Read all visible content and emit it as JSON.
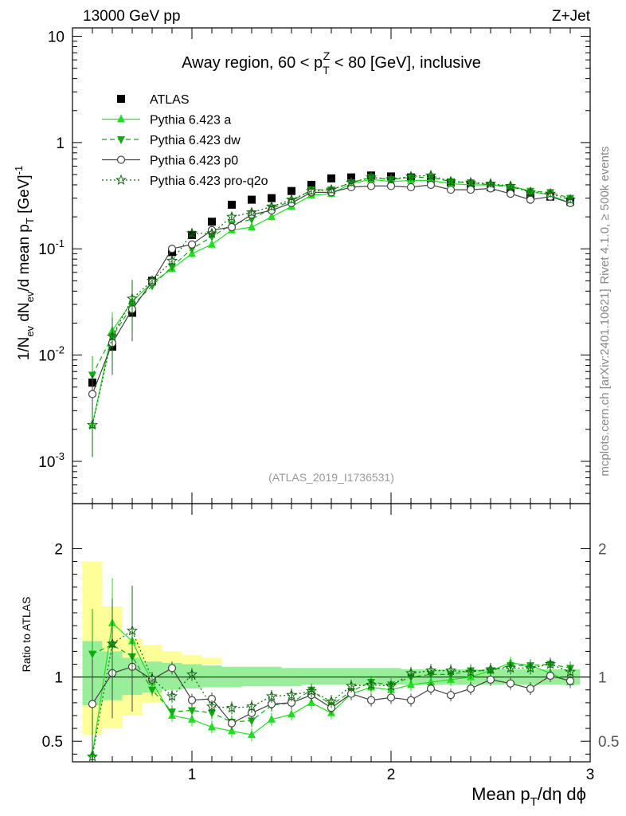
{
  "header": {
    "left": "13000 GeV pp",
    "right": "Z+Jet"
  },
  "side_labels": {
    "rivet": "Rivet 4.1.0, ≥ 500k events",
    "mcplots": "mcplots.cern.ch [arXiv:2401.10621]"
  },
  "chart_data": {
    "type": "scatter",
    "title": "Away region, 60 < p_T^Z < 80 [GeV], inclusive",
    "analysis_id": "(ATLAS_2019_I1736531)",
    "xlabel": "Mean p_T/dη dφ",
    "ylabel": "1/N_ev dN_ev/d mean p_T [GeV]^-1",
    "ratio_ylabel": "Ratio to ATLAS",
    "xlim": [
      0.4,
      3.0
    ],
    "ylim": [
      0.0004,
      12
    ],
    "yscale": "log",
    "ratio_ylim": [
      0.34,
      2.35
    ],
    "x_ticks": [
      "1",
      "2",
      "3"
    ],
    "y_ticks": [
      "10^-3",
      "10^-2",
      "10^-1",
      "1",
      "10"
    ],
    "ratio_ticks": [
      "0.5",
      "1",
      "2"
    ],
    "x": [
      0.5,
      0.6,
      0.7,
      0.8,
      0.9,
      1.0,
      1.1,
      1.2,
      1.3,
      1.4,
      1.5,
      1.6,
      1.7,
      1.8,
      1.9,
      2.0,
      2.1,
      2.2,
      2.3,
      2.4,
      2.5,
      2.6,
      2.7,
      2.8,
      2.9
    ],
    "series": [
      {
        "name": "ATLAS",
        "color": "#000000",
        "marker": "square",
        "line": "none",
        "values": [
          0.0055,
          0.012,
          0.025,
          0.05,
          0.093,
          0.135,
          0.18,
          0.26,
          0.29,
          0.3,
          0.35,
          0.4,
          0.46,
          0.47,
          0.49,
          0.48,
          0.47,
          0.46,
          0.42,
          0.4,
          0.38,
          0.35,
          0.32,
          0.31,
          0.28
        ]
      },
      {
        "name": "Pythia 6.423 a",
        "color": "#22dd22",
        "marker": "triangle-up",
        "line": "solid",
        "values": [
          0.0022,
          0.017,
          0.032,
          0.048,
          0.065,
          0.09,
          0.11,
          0.15,
          0.16,
          0.2,
          0.25,
          0.32,
          0.33,
          0.41,
          0.45,
          0.43,
          0.44,
          0.44,
          0.41,
          0.4,
          0.4,
          0.39,
          0.35,
          0.32,
          0.27
        ],
        "ratio": [
          0.4,
          1.42,
          1.28,
          0.96,
          0.7,
          0.67,
          0.61,
          0.58,
          0.55,
          0.67,
          0.71,
          0.8,
          0.72,
          0.87,
          0.92,
          0.9,
          0.94,
          0.96,
          0.98,
          1.0,
          1.05,
          1.11,
          1.09,
          1.03,
          0.96
        ]
      },
      {
        "name": "Pythia 6.423 dw",
        "color": "#11aa11",
        "marker": "triangle-down",
        "line": "dashed",
        "values": [
          0.0065,
          0.015,
          0.029,
          0.045,
          0.068,
          0.1,
          0.13,
          0.17,
          0.19,
          0.24,
          0.28,
          0.36,
          0.36,
          0.42,
          0.47,
          0.45,
          0.47,
          0.47,
          0.43,
          0.42,
          0.4,
          0.38,
          0.35,
          0.34,
          0.3
        ],
        "ratio": [
          1.18,
          1.25,
          1.16,
          0.9,
          0.73,
          0.74,
          0.72,
          0.65,
          0.66,
          0.78,
          0.8,
          0.9,
          0.78,
          0.89,
          0.96,
          0.94,
          1.0,
          1.02,
          1.02,
          1.05,
          1.05,
          1.09,
          1.09,
          1.1,
          1.07
        ]
      },
      {
        "name": "Pythia 6.423 p0",
        "color": "#444444",
        "marker": "circle-open",
        "line": "solid",
        "values": [
          0.0043,
          0.013,
          0.027,
          0.049,
          0.1,
          0.11,
          0.15,
          0.16,
          0.21,
          0.23,
          0.27,
          0.34,
          0.34,
          0.38,
          0.39,
          0.39,
          0.38,
          0.4,
          0.36,
          0.36,
          0.37,
          0.33,
          0.29,
          0.31,
          0.27
        ],
        "ratio": [
          0.79,
          1.03,
          1.08,
          0.98,
          1.07,
          0.82,
          0.83,
          0.64,
          0.72,
          0.79,
          0.8,
          0.86,
          0.76,
          0.87,
          0.82,
          0.84,
          0.82,
          0.91,
          0.86,
          0.91,
          0.98,
          0.95,
          0.91,
          1.01,
          0.97
        ]
      },
      {
        "name": "Pythia 6.423 pro-q2o",
        "color": "#116611",
        "marker": "star-open",
        "line": "dotted",
        "values": [
          0.0022,
          0.015,
          0.034,
          0.05,
          0.077,
          0.14,
          0.14,
          0.2,
          0.22,
          0.25,
          0.29,
          0.35,
          0.36,
          0.42,
          0.47,
          0.45,
          0.48,
          0.49,
          0.43,
          0.42,
          0.41,
          0.39,
          0.34,
          0.33,
          0.29
        ],
        "ratio": [
          0.38,
          1.26,
          1.36,
          0.99,
          0.85,
          1.02,
          0.77,
          0.76,
          0.77,
          0.85,
          0.86,
          0.89,
          0.81,
          0.93,
          0.94,
          0.93,
          1.03,
          1.05,
          1.05,
          1.04,
          1.06,
          1.07,
          1.07,
          1.1,
          1.04
        ]
      }
    ],
    "ratio_band_yellow": [
      [
        0.55,
        1.9
      ],
      [
        0.6,
        1.55
      ],
      [
        0.7,
        1.3
      ],
      [
        0.8,
        1.25
      ],
      [
        0.9,
        1.2
      ],
      [
        1.0,
        1.17
      ],
      [
        1.1,
        1.15
      ],
      [
        1.2,
        1.14
      ],
      [
        1.3,
        1.13
      ],
      [
        1.4,
        1.12
      ],
      [
        1.5,
        1.12
      ],
      [
        1.6,
        1.11
      ],
      [
        1.7,
        1.11
      ],
      [
        1.8,
        1.11
      ],
      [
        1.9,
        1.11
      ],
      [
        2.0,
        1.11
      ],
      [
        2.1,
        1.1
      ],
      [
        2.2,
        1.1
      ],
      [
        2.3,
        1.1
      ],
      [
        2.4,
        1.1
      ],
      [
        2.5,
        1.1
      ],
      [
        2.6,
        1.1
      ],
      [
        2.7,
        1.1
      ],
      [
        2.8,
        1.1
      ],
      [
        2.9,
        1.1
      ]
    ],
    "ratio_band_green": [
      [
        0.78,
        1.28
      ],
      [
        0.82,
        1.2
      ],
      [
        0.86,
        1.15
      ],
      [
        0.88,
        1.12
      ],
      [
        0.9,
        1.11
      ],
      [
        0.91,
        1.1
      ],
      [
        0.92,
        1.09
      ],
      [
        0.92,
        1.08
      ],
      [
        0.93,
        1.08
      ],
      [
        0.93,
        1.08
      ],
      [
        0.93,
        1.07
      ],
      [
        0.94,
        1.07
      ],
      [
        0.94,
        1.07
      ],
      [
        0.94,
        1.07
      ],
      [
        0.94,
        1.07
      ],
      [
        0.94,
        1.07
      ],
      [
        0.94,
        1.06
      ],
      [
        0.94,
        1.06
      ],
      [
        0.94,
        1.06
      ],
      [
        0.94,
        1.06
      ],
      [
        0.94,
        1.06
      ],
      [
        0.94,
        1.06
      ],
      [
        0.94,
        1.06
      ],
      [
        0.94,
        1.06
      ],
      [
        0.94,
        1.06
      ]
    ]
  }
}
